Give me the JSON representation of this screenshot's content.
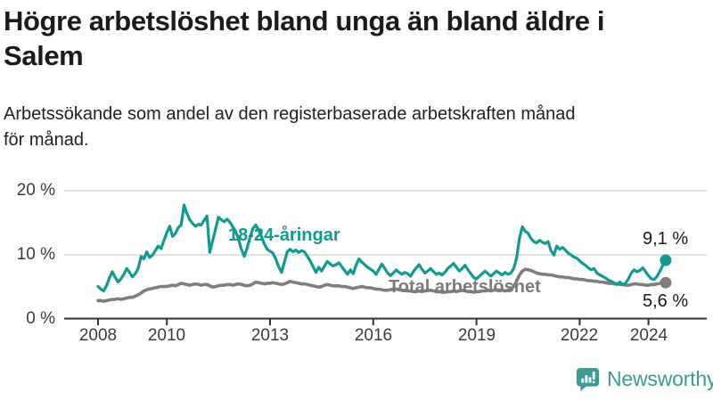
{
  "header": {
    "title_line1": "Högre arbetslöshet bland unga än bland äldre i",
    "title_line2": "Salem",
    "subtitle_line1": "Arbetssökande som andel av den registerbaserade arbetskraften månad",
    "subtitle_line2": "för månad."
  },
  "chart_data": {
    "type": "line",
    "title": "Högre arbetslöshet bland unga än bland äldre i Salem",
    "subtitle": "Arbetssökande som andel av den registerbaserade arbetskraften månad för månad.",
    "x_axis": {
      "start": "2008-01",
      "end": "2024-07",
      "interval": "monthly",
      "ticks": [
        "2008",
        "2010",
        "2013",
        "2016",
        "2019",
        "2022",
        "2024"
      ]
    },
    "y_axis": {
      "unit": "%",
      "range": [
        0,
        20
      ],
      "ticks": [
        "20 %",
        "10 %",
        "0 %"
      ]
    },
    "grid": "horizontal",
    "legend": "inline-labels",
    "colors": {
      "young": "#119a92",
      "total": "#7e7e7e",
      "gridline": "#d8d8d8",
      "axis": "#333333"
    },
    "series": [
      {
        "name": "Total arbetslöshet",
        "color": "#7e7e7e",
        "stroke_width": 3.6,
        "end_value_label": "5,6 %",
        "values": [
          2.8,
          2.8,
          2.7,
          2.8,
          2.9,
          3.0,
          3.0,
          3.1,
          3.0,
          3.1,
          3.2,
          3.3,
          3.3,
          3.5,
          3.7,
          4.0,
          4.3,
          4.5,
          4.6,
          4.7,
          4.8,
          4.9,
          5.0,
          5.0,
          5.0,
          5.1,
          5.2,
          5.1,
          5.3,
          5.5,
          5.4,
          5.3,
          5.2,
          5.3,
          5.4,
          5.3,
          5.2,
          5.3,
          5.3,
          5.1,
          4.9,
          5.0,
          5.1,
          5.2,
          5.2,
          5.3,
          5.3,
          5.2,
          5.3,
          5.4,
          5.3,
          5.2,
          5.1,
          5.2,
          5.4,
          5.7,
          5.6,
          5.5,
          5.4,
          5.5,
          5.5,
          5.6,
          5.5,
          5.4,
          5.3,
          5.4,
          5.6,
          5.8,
          5.7,
          5.6,
          5.5,
          5.4,
          5.4,
          5.3,
          5.2,
          5.1,
          5.0,
          4.9,
          5.0,
          5.2,
          5.3,
          5.2,
          5.1,
          5.1,
          5.1,
          5.0,
          5.0,
          4.9,
          4.8,
          4.7,
          4.8,
          4.9,
          5.0,
          4.9,
          4.8,
          4.8,
          4.7,
          4.6,
          4.6,
          4.5,
          4.4,
          4.4,
          4.5,
          4.6,
          4.6,
          4.5,
          4.4,
          4.4,
          4.3,
          4.3,
          4.2,
          4.2,
          4.3,
          4.2,
          4.3,
          4.4,
          4.4,
          4.3,
          4.2,
          4.2,
          4.1,
          4.1,
          4.2,
          4.2,
          4.3,
          4.2,
          4.3,
          4.4,
          4.3,
          4.2,
          4.2,
          4.1,
          4.2,
          4.2,
          4.3,
          4.3,
          4.4,
          4.3,
          4.4,
          4.5,
          4.4,
          4.4,
          4.3,
          4.4,
          4.6,
          5.0,
          5.8,
          6.8,
          7.4,
          7.7,
          7.6,
          7.5,
          7.3,
          7.1,
          7.0,
          6.9,
          6.9,
          6.8,
          6.8,
          6.7,
          6.6,
          6.5,
          6.5,
          6.4,
          6.4,
          6.3,
          6.2,
          6.2,
          6.1,
          6.1,
          6.0,
          5.9,
          5.9,
          5.8,
          5.8,
          5.7,
          5.7,
          5.6,
          5.5,
          5.5,
          5.4,
          5.4,
          5.3,
          5.3,
          5.2,
          5.2,
          5.3,
          5.4,
          5.4,
          5.3,
          5.3,
          5.2,
          5.2,
          5.3,
          5.3,
          5.4,
          5.5,
          5.5,
          5.6
        ]
      },
      {
        "name": "18-24-åringar",
        "color": "#119a92",
        "stroke_width": 3.2,
        "end_value_label": "9,1 %",
        "values": [
          5.0,
          4.6,
          4.3,
          5.2,
          6.4,
          7.3,
          6.4,
          5.7,
          6.2,
          6.9,
          7.8,
          7.2,
          6.5,
          7.0,
          7.8,
          9.7,
          9.3,
          10.4,
          9.5,
          9.9,
          10.6,
          11.3,
          10.9,
          12.2,
          13.4,
          14.4,
          12.8,
          13.3,
          14.2,
          14.6,
          17.7,
          16.4,
          15.4,
          14.8,
          14.4,
          14.7,
          14.6,
          15.3,
          16.0,
          10.3,
          12.2,
          14.0,
          15.8,
          15.4,
          15.1,
          15.5,
          15.0,
          14.3,
          13.6,
          12.4,
          10.8,
          9.7,
          11.0,
          12.6,
          14.0,
          14.6,
          13.8,
          12.8,
          11.6,
          10.8,
          10.5,
          10.2,
          9.3,
          8.1,
          7.2,
          8.8,
          10.4,
          10.8,
          10.4,
          10.7,
          10.3,
          10.6,
          10.4,
          9.7,
          9.0,
          8.1,
          7.2,
          8.0,
          7.4,
          8.2,
          8.9,
          8.5,
          8.2,
          8.4,
          8.7,
          8.1,
          7.5,
          6.9,
          7.6,
          7.0,
          8.3,
          9.3,
          8.8,
          8.4,
          8.0,
          7.7,
          7.4,
          6.9,
          7.7,
          8.5,
          7.8,
          7.1,
          6.7,
          7.1,
          7.6,
          7.2,
          6.9,
          7.2,
          7.0,
          6.6,
          7.3,
          7.9,
          8.4,
          7.7,
          7.1,
          7.4,
          7.8,
          7.3,
          6.9,
          7.1,
          6.8,
          7.2,
          7.8,
          8.2,
          8.6,
          8.0,
          7.4,
          7.8,
          8.3,
          7.6,
          7.0,
          6.4,
          6.2,
          6.6,
          7.0,
          7.4,
          7.0,
          6.6,
          7.0,
          7.4,
          7.1,
          6.8,
          7.2,
          6.9,
          7.1,
          7.8,
          9.4,
          12.6,
          14.3,
          13.6,
          13.3,
          12.5,
          12.0,
          11.8,
          12.2,
          11.9,
          11.7,
          12.0,
          10.6,
          9.9,
          11.3,
          10.8,
          11.1,
          10.7,
          10.2,
          9.9,
          9.6,
          9.4,
          9.0,
          8.6,
          8.3,
          7.9,
          7.6,
          7.8,
          7.1,
          6.8,
          6.6,
          6.3,
          6.0,
          5.8,
          5.6,
          5.3,
          5.7,
          5.3,
          5.5,
          6.2,
          7.1,
          7.6,
          7.3,
          7.5,
          7.9,
          7.3,
          6.7,
          6.2,
          6.1,
          6.6,
          7.4,
          8.3,
          9.1
        ]
      }
    ]
  },
  "footer": {
    "brand": "Newsworthy",
    "brand_color": "#3b9c94",
    "logo_icon": "bar-chart-speech-bubble"
  }
}
